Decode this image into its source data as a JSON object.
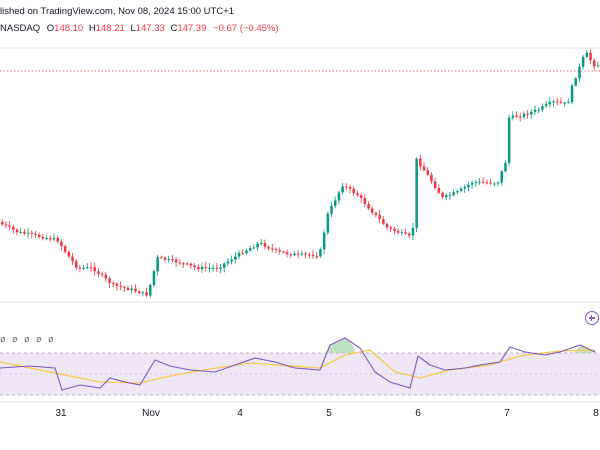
{
  "header": {
    "published_text": "lished on TradingView.com, Nov 08, 2024 15:00 UTC+1"
  },
  "ohlc": {
    "exchange": "NASDAQ",
    "open_label": "O",
    "open": "148.10",
    "high_label": "H",
    "high": "148.21",
    "low_label": "L",
    "low": "147.33",
    "close_label": "C",
    "close": "147.39",
    "change": "−0.67 (−0.45%)"
  },
  "indicator": {
    "label": "ø ø ø ø ø"
  },
  "colors": {
    "up": "#089981",
    "down": "#f23645",
    "rsi_line": "#7e57c2",
    "rsi_ma": "#f7c948",
    "band_fill": "#ede7f6"
  },
  "chart_data": {
    "type": "candlestick",
    "x_ticks": [
      "31",
      "Nov",
      "4",
      "5",
      "6",
      "7",
      "8"
    ],
    "price_trend_points": [
      [
        0,
        222
      ],
      [
        20,
        232
      ],
      [
        60,
        240
      ],
      [
        70,
        255
      ],
      [
        80,
        268
      ],
      [
        95,
        268
      ],
      [
        115,
        285
      ],
      [
        135,
        290
      ],
      [
        150,
        295
      ],
      [
        160,
        258
      ],
      [
        180,
        262
      ],
      [
        200,
        268
      ],
      [
        220,
        268
      ],
      [
        245,
        252
      ],
      [
        262,
        243
      ],
      [
        280,
        252
      ],
      [
        300,
        255
      ],
      [
        322,
        255
      ],
      [
        330,
        215
      ],
      [
        345,
        185
      ],
      [
        360,
        195
      ],
      [
        375,
        212
      ],
      [
        390,
        228
      ],
      [
        415,
        238
      ],
      [
        418,
        158
      ],
      [
        430,
        175
      ],
      [
        445,
        198
      ],
      [
        460,
        192
      ],
      [
        475,
        182
      ],
      [
        500,
        183
      ],
      [
        508,
        162
      ],
      [
        510,
        118
      ],
      [
        525,
        115
      ],
      [
        540,
        110
      ],
      [
        555,
        102
      ],
      [
        570,
        104
      ],
      [
        575,
        85
      ],
      [
        588,
        52
      ],
      [
        596,
        65
      ]
    ],
    "rsi_points": [
      [
        0,
        368
      ],
      [
        30,
        366
      ],
      [
        55,
        368
      ],
      [
        62,
        390
      ],
      [
        80,
        385
      ],
      [
        100,
        388
      ],
      [
        110,
        378
      ],
      [
        125,
        382
      ],
      [
        140,
        385
      ],
      [
        155,
        360
      ],
      [
        170,
        366
      ],
      [
        190,
        370
      ],
      [
        215,
        372
      ],
      [
        235,
        365
      ],
      [
        255,
        358
      ],
      [
        275,
        362
      ],
      [
        295,
        368
      ],
      [
        320,
        370
      ],
      [
        330,
        345
      ],
      [
        345,
        338
      ],
      [
        360,
        348
      ],
      [
        375,
        372
      ],
      [
        390,
        382
      ],
      [
        410,
        388
      ],
      [
        418,
        356
      ],
      [
        430,
        365
      ],
      [
        445,
        370
      ],
      [
        465,
        368
      ],
      [
        480,
        365
      ],
      [
        500,
        362
      ],
      [
        510,
        347
      ],
      [
        525,
        352
      ],
      [
        545,
        355
      ],
      [
        560,
        352
      ],
      [
        580,
        345
      ],
      [
        595,
        352
      ]
    ],
    "rsi_ma_points": [
      [
        0,
        362
      ],
      [
        60,
        374
      ],
      [
        100,
        382
      ],
      [
        140,
        383
      ],
      [
        170,
        376
      ],
      [
        210,
        369
      ],
      [
        250,
        363
      ],
      [
        290,
        366
      ],
      [
        320,
        368
      ],
      [
        345,
        355
      ],
      [
        370,
        350
      ],
      [
        395,
        372
      ],
      [
        420,
        378
      ],
      [
        450,
        370
      ],
      [
        490,
        365
      ],
      [
        520,
        356
      ],
      [
        560,
        351
      ],
      [
        595,
        350
      ]
    ],
    "high_price_line": "dotted-red"
  },
  "x_axis": {
    "ticks": [
      {
        "label": "31"
      },
      {
        "label": "Nov"
      },
      {
        "label": "4"
      },
      {
        "label": "5"
      },
      {
        "label": "6"
      },
      {
        "label": "7"
      },
      {
        "label": "8"
      }
    ]
  }
}
